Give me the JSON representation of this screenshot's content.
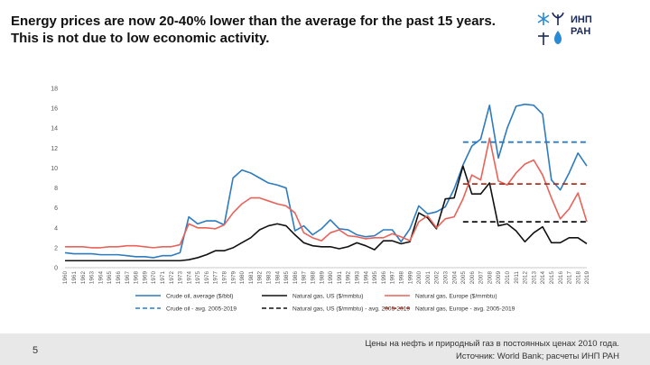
{
  "title": {
    "line1": "Energy prices are now 20-40% lower than the average for the past 15 years.",
    "line2": "This is not due to low economic activity."
  },
  "logo": {
    "line1": "ИНП",
    "line2": "РАН",
    "color": "#1a2a5e",
    "accent": "#2a8ad4"
  },
  "footer": {
    "page_number": "5",
    "note": "Цены на нефть и природный газ в постоянных ценах 2010 года.",
    "source": "Источник: World Bank; расчеты ИНП РАН"
  },
  "chart_data": {
    "type": "line",
    "ylim": [
      0,
      18
    ],
    "y_ticks": [
      0,
      2,
      4,
      6,
      8,
      10,
      12,
      14,
      16,
      18
    ],
    "grid": false,
    "legend_position": "bottom",
    "x": [
      1960,
      1961,
      1962,
      1963,
      1964,
      1965,
      1966,
      1967,
      1968,
      1969,
      1970,
      1971,
      1972,
      1973,
      1974,
      1975,
      1976,
      1977,
      1978,
      1979,
      1980,
      1981,
      1982,
      1983,
      1984,
      1985,
      1986,
      1987,
      1988,
      1989,
      1990,
      1991,
      1992,
      1993,
      1994,
      1995,
      1996,
      1997,
      1998,
      1999,
      2000,
      2001,
      2002,
      2003,
      2004,
      2005,
      2006,
      2007,
      2008,
      2009,
      2010,
      2011,
      2012,
      2013,
      2014,
      2015,
      2016,
      2017,
      2018,
      2019
    ],
    "series": [
      {
        "name": "Crude oil, average ($/bbl)",
        "color": "#2e7bbf",
        "dashed": false,
        "values": [
          1.5,
          1.4,
          1.4,
          1.4,
          1.3,
          1.3,
          1.3,
          1.2,
          1.1,
          1.1,
          1.0,
          1.2,
          1.2,
          1.5,
          5.1,
          4.4,
          4.7,
          4.7,
          4.3,
          9.0,
          9.8,
          9.5,
          9.0,
          8.5,
          8.3,
          8.0,
          3.7,
          4.2,
          3.3,
          3.9,
          4.8,
          3.9,
          3.8,
          3.3,
          3.1,
          3.2,
          3.8,
          3.8,
          2.6,
          3.9,
          6.2,
          5.4,
          5.6,
          6.1,
          7.9,
          10.3,
          12.2,
          12.9,
          16.3,
          11.0,
          14.0,
          16.2,
          16.4,
          16.3,
          15.4,
          8.8,
          7.8,
          9.5,
          11.5,
          10.2
        ]
      },
      {
        "name": "Natural gas, US ($/mmbtu)",
        "color": "#111111",
        "dashed": false,
        "values": [
          0.7,
          0.7,
          0.7,
          0.7,
          0.7,
          0.7,
          0.7,
          0.7,
          0.7,
          0.7,
          0.7,
          0.7,
          0.7,
          0.7,
          0.8,
          1.0,
          1.3,
          1.7,
          1.7,
          2.0,
          2.5,
          3.0,
          3.8,
          4.2,
          4.4,
          4.2,
          3.3,
          2.5,
          2.2,
          2.1,
          2.1,
          1.9,
          2.1,
          2.5,
          2.2,
          1.8,
          2.7,
          2.7,
          2.4,
          2.6,
          5.5,
          5.0,
          3.9,
          6.9,
          7.0,
          10.2,
          7.4,
          7.4,
          8.5,
          4.2,
          4.4,
          3.7,
          2.6,
          3.5,
          4.1,
          2.5,
          2.5,
          3.0,
          3.0,
          2.4
        ]
      },
      {
        "name": "Natural gas, Europe ($/mmbtu)",
        "color": "#e8635a",
        "dashed": false,
        "values": [
          2.1,
          2.1,
          2.1,
          2.0,
          2.0,
          2.1,
          2.1,
          2.2,
          2.2,
          2.1,
          2.0,
          2.1,
          2.1,
          2.3,
          4.4,
          4.0,
          4.0,
          3.9,
          4.3,
          5.5,
          6.4,
          7.0,
          7.0,
          6.7,
          6.4,
          6.2,
          5.5,
          3.5,
          3.0,
          2.7,
          3.5,
          3.8,
          3.2,
          3.1,
          2.9,
          3.0,
          3.0,
          3.4,
          3.1,
          2.7,
          4.6,
          5.2,
          4.0,
          4.9,
          5.1,
          6.9,
          9.3,
          8.8,
          13.0,
          8.7,
          8.3,
          9.5,
          10.4,
          10.8,
          9.3,
          7.0,
          4.9,
          5.9,
          7.5,
          4.6
        ]
      },
      {
        "name": "Crude oil - avg. 2005-2019",
        "color": "#2e7bbf",
        "dashed": true,
        "x_range": [
          2005,
          2019
        ],
        "value": 12.6
      },
      {
        "name": "Natural gas, US ($/mmbtu) - avg. 2005-2019",
        "color": "#111111",
        "dashed": true,
        "x_range": [
          2005,
          2019
        ],
        "value": 4.6
      },
      {
        "name": "Natural gas, Europe - avg. 2005-2019",
        "color": "#b03020",
        "dashed": true,
        "x_range": [
          2005,
          2019
        ],
        "value": 8.4
      }
    ]
  }
}
